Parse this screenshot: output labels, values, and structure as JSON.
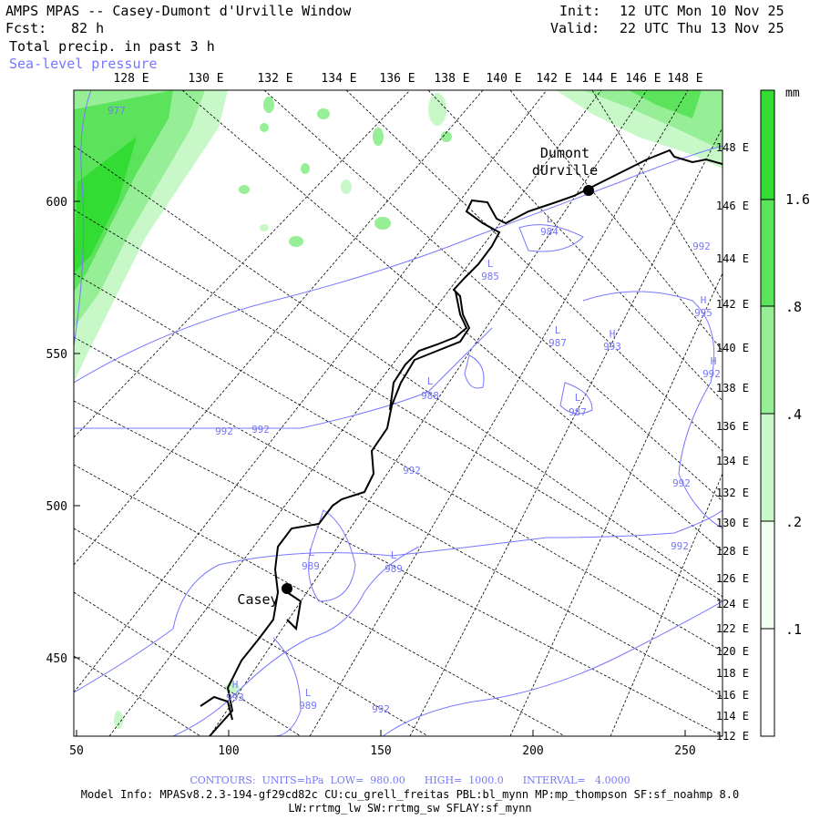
{
  "header": {
    "title": "AMPS MPAS -- Casey-Dumont d'Urville Window",
    "fcst_label": "Fcst:",
    "fcst_value": "82 h",
    "field": "Total precip. in past 3 h",
    "overlay": "Sea-level pressure",
    "init_label": "Init:",
    "init_value": "12 UTC Mon 10 Nov 25",
    "valid_label": "Valid:",
    "valid_value": "22 UTC Thu 13 Nov 25"
  },
  "top_lon_labels": [
    "128 E",
    "130 E",
    "132 E",
    "134 E",
    "136 E",
    "138 E",
    "140 E",
    "142 E",
    "144 E",
    "146 E",
    "148 E"
  ],
  "right_lon_labels": [
    "148 E",
    "146 E",
    "144 E",
    "142 E",
    "140 E",
    "138 E",
    "136 E",
    "134 E",
    "132 E",
    "130 E",
    "128 E",
    "126 E",
    "124 E",
    "122 E",
    "120 E",
    "118 E",
    "116 E",
    "114 E",
    "112 E"
  ],
  "left_axis": [
    "600",
    "550",
    "500",
    "450"
  ],
  "bottom_axis": [
    "50",
    "100",
    "150",
    "200",
    "250"
  ],
  "colorbar": {
    "unit": "mm",
    "labels": [
      "1.6",
      ".8",
      ".4",
      ".2",
      ".1"
    ],
    "levels": [
      0.1,
      0.2,
      0.4,
      0.8,
      1.6
    ],
    "colors": [
      "#ffffff",
      "#f0fff0",
      "#c8f8c8",
      "#96ee96",
      "#5ce35c",
      "#32dc32"
    ]
  },
  "stations": [
    {
      "name_line1": "Dumont",
      "name_line2": "dUrville"
    },
    {
      "name_line1": "Casey"
    }
  ],
  "pressure_labels": [
    "977",
    "L",
    "984",
    "992",
    "L",
    "985",
    "H",
    "995",
    "L",
    "987",
    "H",
    "993",
    "H",
    "992",
    "L",
    "988",
    "L",
    "987",
    "992",
    "992",
    "992",
    "992",
    "992",
    "L",
    "989",
    "L",
    "989",
    "H",
    "993",
    "L",
    "989",
    "992"
  ],
  "footer": {
    "contours": "CONTOURS:  UNITS=hPa  LOW=  980.00      HIGH=  1000.0      INTERVAL=   4.0000",
    "model_info": "Model Info: MPASv8.2.3-194-gf29cd82c CU:cu_grell_freitas PBL:bl_mynn MP:mp_thompson SF:sf_noahmp 8.0",
    "model_info2": "LW:rrtmg_lw SW:rrtmg_sw SFLAY:sf_mynn"
  },
  "colors": {
    "contour": "#7777ff",
    "coast": "#000000",
    "grid": "#000000"
  }
}
